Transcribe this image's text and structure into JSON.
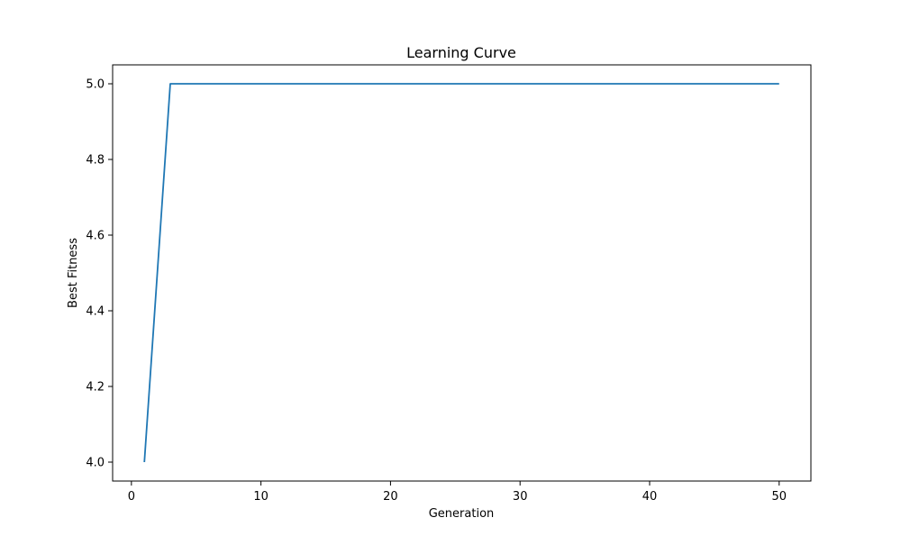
{
  "chart_data": {
    "type": "line",
    "title": "Learning Curve",
    "xlabel": "Generation",
    "ylabel": "Best Fitness",
    "xlim": [
      -1.45,
      52.45
    ],
    "ylim": [
      3.95,
      5.05
    ],
    "xticks": [
      0,
      10,
      20,
      30,
      40,
      50
    ],
    "xtick_labels": [
      "0",
      "10",
      "20",
      "30",
      "40",
      "50"
    ],
    "yticks": [
      4.0,
      4.2,
      4.4,
      4.6,
      4.8,
      5.0
    ],
    "ytick_labels": [
      "4.0",
      "4.2",
      "4.4",
      "4.6",
      "4.8",
      "5.0"
    ],
    "grid": false,
    "series": [
      {
        "color": "#1f77b4",
        "x": [
          1,
          2,
          3,
          4,
          5,
          6,
          7,
          8,
          9,
          10,
          11,
          12,
          13,
          14,
          15,
          16,
          17,
          18,
          19,
          20,
          21,
          22,
          23,
          24,
          25,
          26,
          27,
          28,
          29,
          30,
          31,
          32,
          33,
          34,
          35,
          36,
          37,
          38,
          39,
          40,
          41,
          42,
          43,
          44,
          45,
          46,
          47,
          48,
          49,
          50
        ],
        "y": [
          4.0,
          4.5,
          5.0,
          5.0,
          5.0,
          5.0,
          5.0,
          5.0,
          5.0,
          5.0,
          5.0,
          5.0,
          5.0,
          5.0,
          5.0,
          5.0,
          5.0,
          5.0,
          5.0,
          5.0,
          5.0,
          5.0,
          5.0,
          5.0,
          5.0,
          5.0,
          5.0,
          5.0,
          5.0,
          5.0,
          5.0,
          5.0,
          5.0,
          5.0,
          5.0,
          5.0,
          5.0,
          5.0,
          5.0,
          5.0,
          5.0,
          5.0,
          5.0,
          5.0,
          5.0,
          5.0,
          5.0,
          5.0,
          5.0,
          5.0
        ]
      }
    ]
  }
}
